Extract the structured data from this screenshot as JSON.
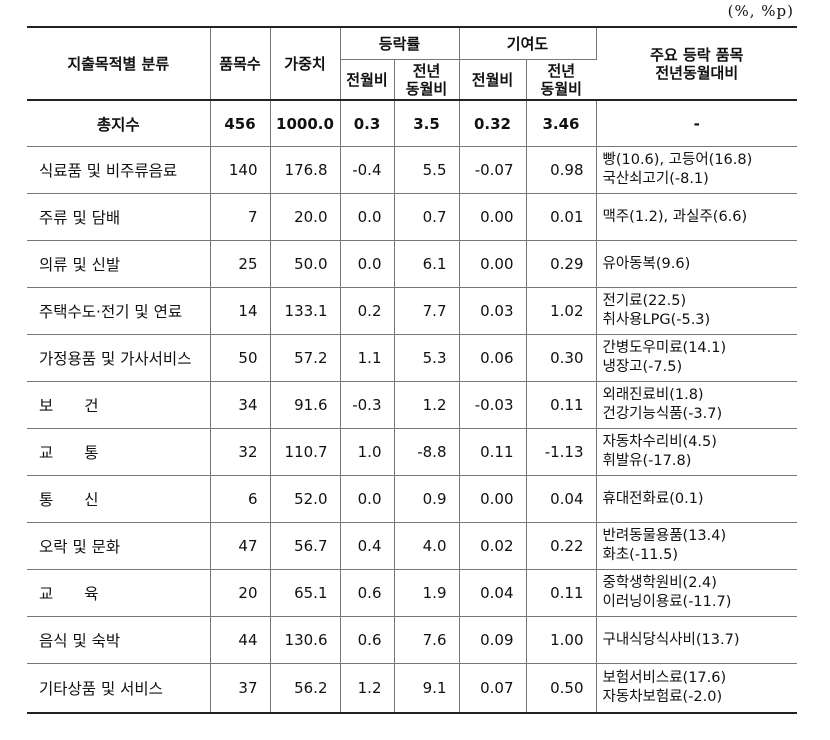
{
  "unit_label": "(%, %p)",
  "headers": {
    "category": "지출목적별 분류",
    "item_count": "품목수",
    "weight": "가중치",
    "change_rate": "등락률",
    "contribution": "기여도",
    "mom": "전월비",
    "yoy_line1": "전년",
    "yoy_line2": "동월비",
    "main_items_line1": "주요 등락 품목",
    "main_items_line2": "전년동월대비"
  },
  "total": {
    "category": "총지수",
    "count": "456",
    "weight": "1000.0",
    "rate_mom": "0.3",
    "rate_yoy": "3.5",
    "contrib_mom": "0.32",
    "contrib_yoy": "3.46",
    "items": "-"
  },
  "rows": [
    {
      "category": "식료품 및 비주류음료",
      "count": "140",
      "weight": "176.8",
      "rate_mom": "-0.4",
      "rate_yoy": "5.5",
      "contrib_mom": "-0.07",
      "contrib_yoy": "0.98",
      "items1": "빵(10.6), 고등어(16.8)",
      "items2": "국산쇠고기(-8.1)"
    },
    {
      "category": "주류 및 담배",
      "count": "7",
      "weight": "20.0",
      "rate_mom": "0.0",
      "rate_yoy": "0.7",
      "contrib_mom": "0.00",
      "contrib_yoy": "0.01",
      "items1": "맥주(1.2), 과실주(6.6)",
      "items2": ""
    },
    {
      "category": "의류 및 신발",
      "count": "25",
      "weight": "50.0",
      "rate_mom": "0.0",
      "rate_yoy": "6.1",
      "contrib_mom": "0.00",
      "contrib_yoy": "0.29",
      "items1": "유아동복(9.6)",
      "items2": ""
    },
    {
      "category": "주택수도·전기 및 연료",
      "count": "14",
      "weight": "133.1",
      "rate_mom": "0.2",
      "rate_yoy": "7.7",
      "contrib_mom": "0.03",
      "contrib_yoy": "1.02",
      "items1": "전기료(22.5)",
      "items2": "취사용LPG(-5.3)"
    },
    {
      "category": "가정용품 및 가사서비스",
      "count": "50",
      "weight": "57.2",
      "rate_mom": "1.1",
      "rate_yoy": "5.3",
      "contrib_mom": "0.06",
      "contrib_yoy": "0.30",
      "items1": "간병도우미료(14.1)",
      "items2": "냉장고(-7.5)"
    },
    {
      "category": "보　　건",
      "count": "34",
      "weight": "91.6",
      "rate_mom": "-0.3",
      "rate_yoy": "1.2",
      "contrib_mom": "-0.03",
      "contrib_yoy": "0.11",
      "items1": "외래진료비(1.8)",
      "items2": "건강기능식품(-3.7)"
    },
    {
      "category": "교　　통",
      "count": "32",
      "weight": "110.7",
      "rate_mom": "1.0",
      "rate_yoy": "-8.8",
      "contrib_mom": "0.11",
      "contrib_yoy": "-1.13",
      "items1": "자동차수리비(4.5)",
      "items2": "휘발유(-17.8)"
    },
    {
      "category": "통　　신",
      "count": "6",
      "weight": "52.0",
      "rate_mom": "0.0",
      "rate_yoy": "0.9",
      "contrib_mom": "0.00",
      "contrib_yoy": "0.04",
      "items1": "휴대전화료(0.1)",
      "items2": ""
    },
    {
      "category": "오락 및 문화",
      "count": "47",
      "weight": "56.7",
      "rate_mom": "0.4",
      "rate_yoy": "4.0",
      "contrib_mom": "0.02",
      "contrib_yoy": "0.22",
      "items1": "반려동물용품(13.4)",
      "items2": "화초(-11.5)"
    },
    {
      "category": "교　　육",
      "count": "20",
      "weight": "65.1",
      "rate_mom": "0.6",
      "rate_yoy": "1.9",
      "contrib_mom": "0.04",
      "contrib_yoy": "0.11",
      "items1": "중학생학원비(2.4)",
      "items2": "이러닝이용료(-11.7)"
    },
    {
      "category": "음식 및 숙박",
      "count": "44",
      "weight": "130.6",
      "rate_mom": "0.6",
      "rate_yoy": "7.6",
      "contrib_mom": "0.09",
      "contrib_yoy": "1.00",
      "items1": "구내식당식사비(13.7)",
      "items2": ""
    },
    {
      "category": "기타상품 및 서비스",
      "count": "37",
      "weight": "56.2",
      "rate_mom": "1.2",
      "rate_yoy": "9.1",
      "contrib_mom": "0.07",
      "contrib_yoy": "0.50",
      "items1": "보험서비스료(17.6)",
      "items2": "자동차보험료(-2.0)"
    }
  ]
}
